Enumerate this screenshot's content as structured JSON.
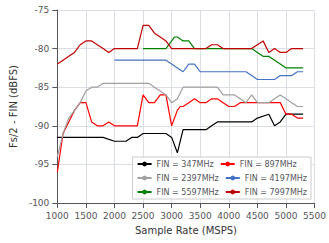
{
  "chart_data": {
    "type": "line",
    "xlabel": "Sample Rate (MSPS)",
    "ylabel": "Fs/2 - FIN (dBFS)",
    "xlim": [
      1000,
      5500
    ],
    "ylim": [
      -100,
      -75
    ],
    "xticks": [
      1000,
      1500,
      2000,
      2500,
      3000,
      3500,
      4000,
      4500,
      5000,
      5500
    ],
    "yticks": [
      -100,
      -95,
      -90,
      -85,
      -80,
      -75
    ],
    "grid": true,
    "legend": "lower right",
    "series": [
      {
        "name": "FIN = 347MHz",
        "color": "#000000",
        "x": [
          1000,
          1200,
          1400,
          1500,
          1600,
          1800,
          2000,
          2100,
          2200,
          2300,
          2400,
          2500,
          2600,
          2700,
          2800,
          2900,
          3000,
          3100,
          3200,
          3300,
          3400,
          3500,
          3600,
          3700,
          3800,
          3900,
          4000,
          4200,
          4400,
          4500,
          4700,
          4800,
          4900,
          5000,
          5100,
          5200,
          5300
        ],
        "values": [
          -91.5,
          -91.5,
          -91.5,
          -91.5,
          -91.5,
          -91.5,
          -92,
          -92,
          -92,
          -91.5,
          -91.5,
          -91,
          -91,
          -91,
          -91,
          -91,
          -91.5,
          -93.5,
          -90.5,
          -90.5,
          -90.5,
          -90.5,
          -90.5,
          -90,
          -89.5,
          -89.5,
          -89.5,
          -89.5,
          -89.5,
          -89,
          -88.5,
          -90,
          -89.5,
          -88.5,
          -88.5,
          -88.5,
          -88.5
        ]
      },
      {
        "name": "FIN = 897MHz",
        "color": "#ff0000",
        "x": [
          1000,
          1100,
          1200,
          1300,
          1400,
          1500,
          1600,
          1700,
          1800,
          1900,
          2000,
          2100,
          2200,
          2300,
          2400,
          2500,
          2600,
          2700,
          2800,
          2850,
          2900,
          3000,
          3100,
          3150,
          3200,
          3300,
          3400,
          3500,
          3600,
          3700,
          3800,
          3900,
          4000,
          4100,
          4200,
          4300,
          4400,
          4500,
          4600,
          4700,
          4800,
          4900,
          5000,
          5100,
          5200,
          5300
        ],
        "values": [
          -96,
          -91,
          -89.5,
          -88,
          -87,
          -87,
          -89.5,
          -90,
          -90,
          -89.5,
          -90,
          -90,
          -90,
          -90,
          -90,
          -86,
          -87,
          -87,
          -86,
          -86,
          -86,
          -90,
          -88,
          -87.5,
          -87.5,
          -87,
          -86.5,
          -87,
          -87,
          -86.5,
          -86.5,
          -87,
          -87.5,
          -87.5,
          -87,
          -87,
          -87,
          -87,
          -87,
          -87,
          -87,
          -87,
          -88.5,
          -88.5,
          -89,
          -89
        ]
      },
      {
        "name": "FIN = 2397MHz",
        "color": "#a0a0a0",
        "x": [
          1000,
          1100,
          1200,
          1300,
          1400,
          1500,
          1600,
          1700,
          1800,
          1900,
          2000,
          2100,
          2200,
          2300,
          2400,
          2500,
          2600,
          2700,
          2800,
          2900,
          3000,
          3100,
          3200,
          3300,
          3400,
          3500,
          3600,
          3700,
          3800,
          3900,
          4000,
          4100,
          4200,
          4300,
          4400,
          4500,
          4600,
          4700,
          4800,
          4900,
          5000,
          5100,
          5200,
          5300
        ],
        "values": [
          -94,
          -91,
          -89,
          -88,
          -87,
          -85.5,
          -85,
          -85,
          -84.5,
          -84.5,
          -84.5,
          -84.5,
          -84.5,
          -84.5,
          -84.5,
          -84.5,
          -84.5,
          -85,
          -85.5,
          -86,
          -87,
          -86.5,
          -85,
          -85,
          -85,
          -85,
          -85,
          -85,
          -85,
          -86,
          -86,
          -86,
          -86.5,
          -87,
          -86,
          -87,
          -87,
          -87,
          -86.5,
          -86,
          -86.5,
          -87,
          -87.5,
          -87.5
        ]
      },
      {
        "name": "FIN = 4197MHz",
        "color": "#4472c4",
        "x": [
          2000,
          2100,
          2200,
          2300,
          2400,
          2500,
          2600,
          2700,
          2800,
          2900,
          3000,
          3100,
          3200,
          3300,
          3400,
          3500,
          3600,
          3700,
          3800,
          3900,
          4000,
          4100,
          4200,
          4300,
          4400,
          4500,
          4600,
          4700,
          4800,
          4900,
          5000,
          5100,
          5200,
          5300
        ],
        "values": [
          -81.5,
          -81.5,
          -81.5,
          -81.5,
          -81.5,
          -81.5,
          -81.5,
          -81.5,
          -81.5,
          -81.5,
          -82,
          -82.5,
          -83,
          -82,
          -82,
          -83,
          -83,
          -83,
          -83,
          -83,
          -83,
          -83,
          -83,
          -83,
          -83.5,
          -84,
          -84,
          -84,
          -84,
          -83.5,
          -83.5,
          -83.5,
          -83,
          -83
        ]
      },
      {
        "name": "FIN = 5597MHz",
        "color": "#008000",
        "x": [
          2500,
          2600,
          2700,
          2800,
          2900,
          3000,
          3050,
          3100,
          3200,
          3300,
          3400,
          3500,
          3600,
          3700,
          3800,
          3900,
          4000,
          4100,
          4200,
          4300,
          4400,
          4500,
          4600,
          4700,
          4800,
          4900,
          5000,
          5100,
          5200,
          5300
        ],
        "values": [
          -80,
          -80,
          -80,
          -80,
          -80,
          -79,
          -78.5,
          -78.5,
          -79,
          -79,
          -80,
          -80,
          -80,
          -80,
          -80,
          -80,
          -80,
          -80,
          -80,
          -80,
          -80,
          -80.5,
          -81,
          -81,
          -81.5,
          -82,
          -82.5,
          -82.5,
          -82.5,
          -82.5
        ]
      },
      {
        "name": "FIN = 7997MHz",
        "color": "#c00000",
        "x": [
          1000,
          1100,
          1200,
          1300,
          1400,
          1500,
          1600,
          1700,
          1800,
          1900,
          2000,
          2100,
          2200,
          2300,
          2400,
          2500,
          2600,
          2700,
          2800,
          2900,
          3000,
          3100,
          3200,
          3300,
          3400,
          3500,
          3600,
          3700,
          3800,
          3900,
          4000,
          4100,
          4200,
          4300,
          4400,
          4500,
          4600,
          4700,
          4800,
          4900,
          5000,
          5100,
          5200,
          5300
        ],
        "values": [
          -82,
          -81.5,
          -81,
          -80.5,
          -79.5,
          -79,
          -79,
          -79.5,
          -80,
          -80.5,
          -80,
          -80,
          -80,
          -80,
          -80,
          -77,
          -77,
          -78,
          -78.5,
          -79,
          -80,
          -80,
          -80,
          -80,
          -80,
          -80,
          -80,
          -79.5,
          -79.5,
          -80,
          -80,
          -80,
          -80,
          -80,
          -80,
          -79.5,
          -79,
          -80.5,
          -80,
          -80.5,
          -80.5,
          -80,
          -80,
          -80
        ]
      }
    ]
  }
}
